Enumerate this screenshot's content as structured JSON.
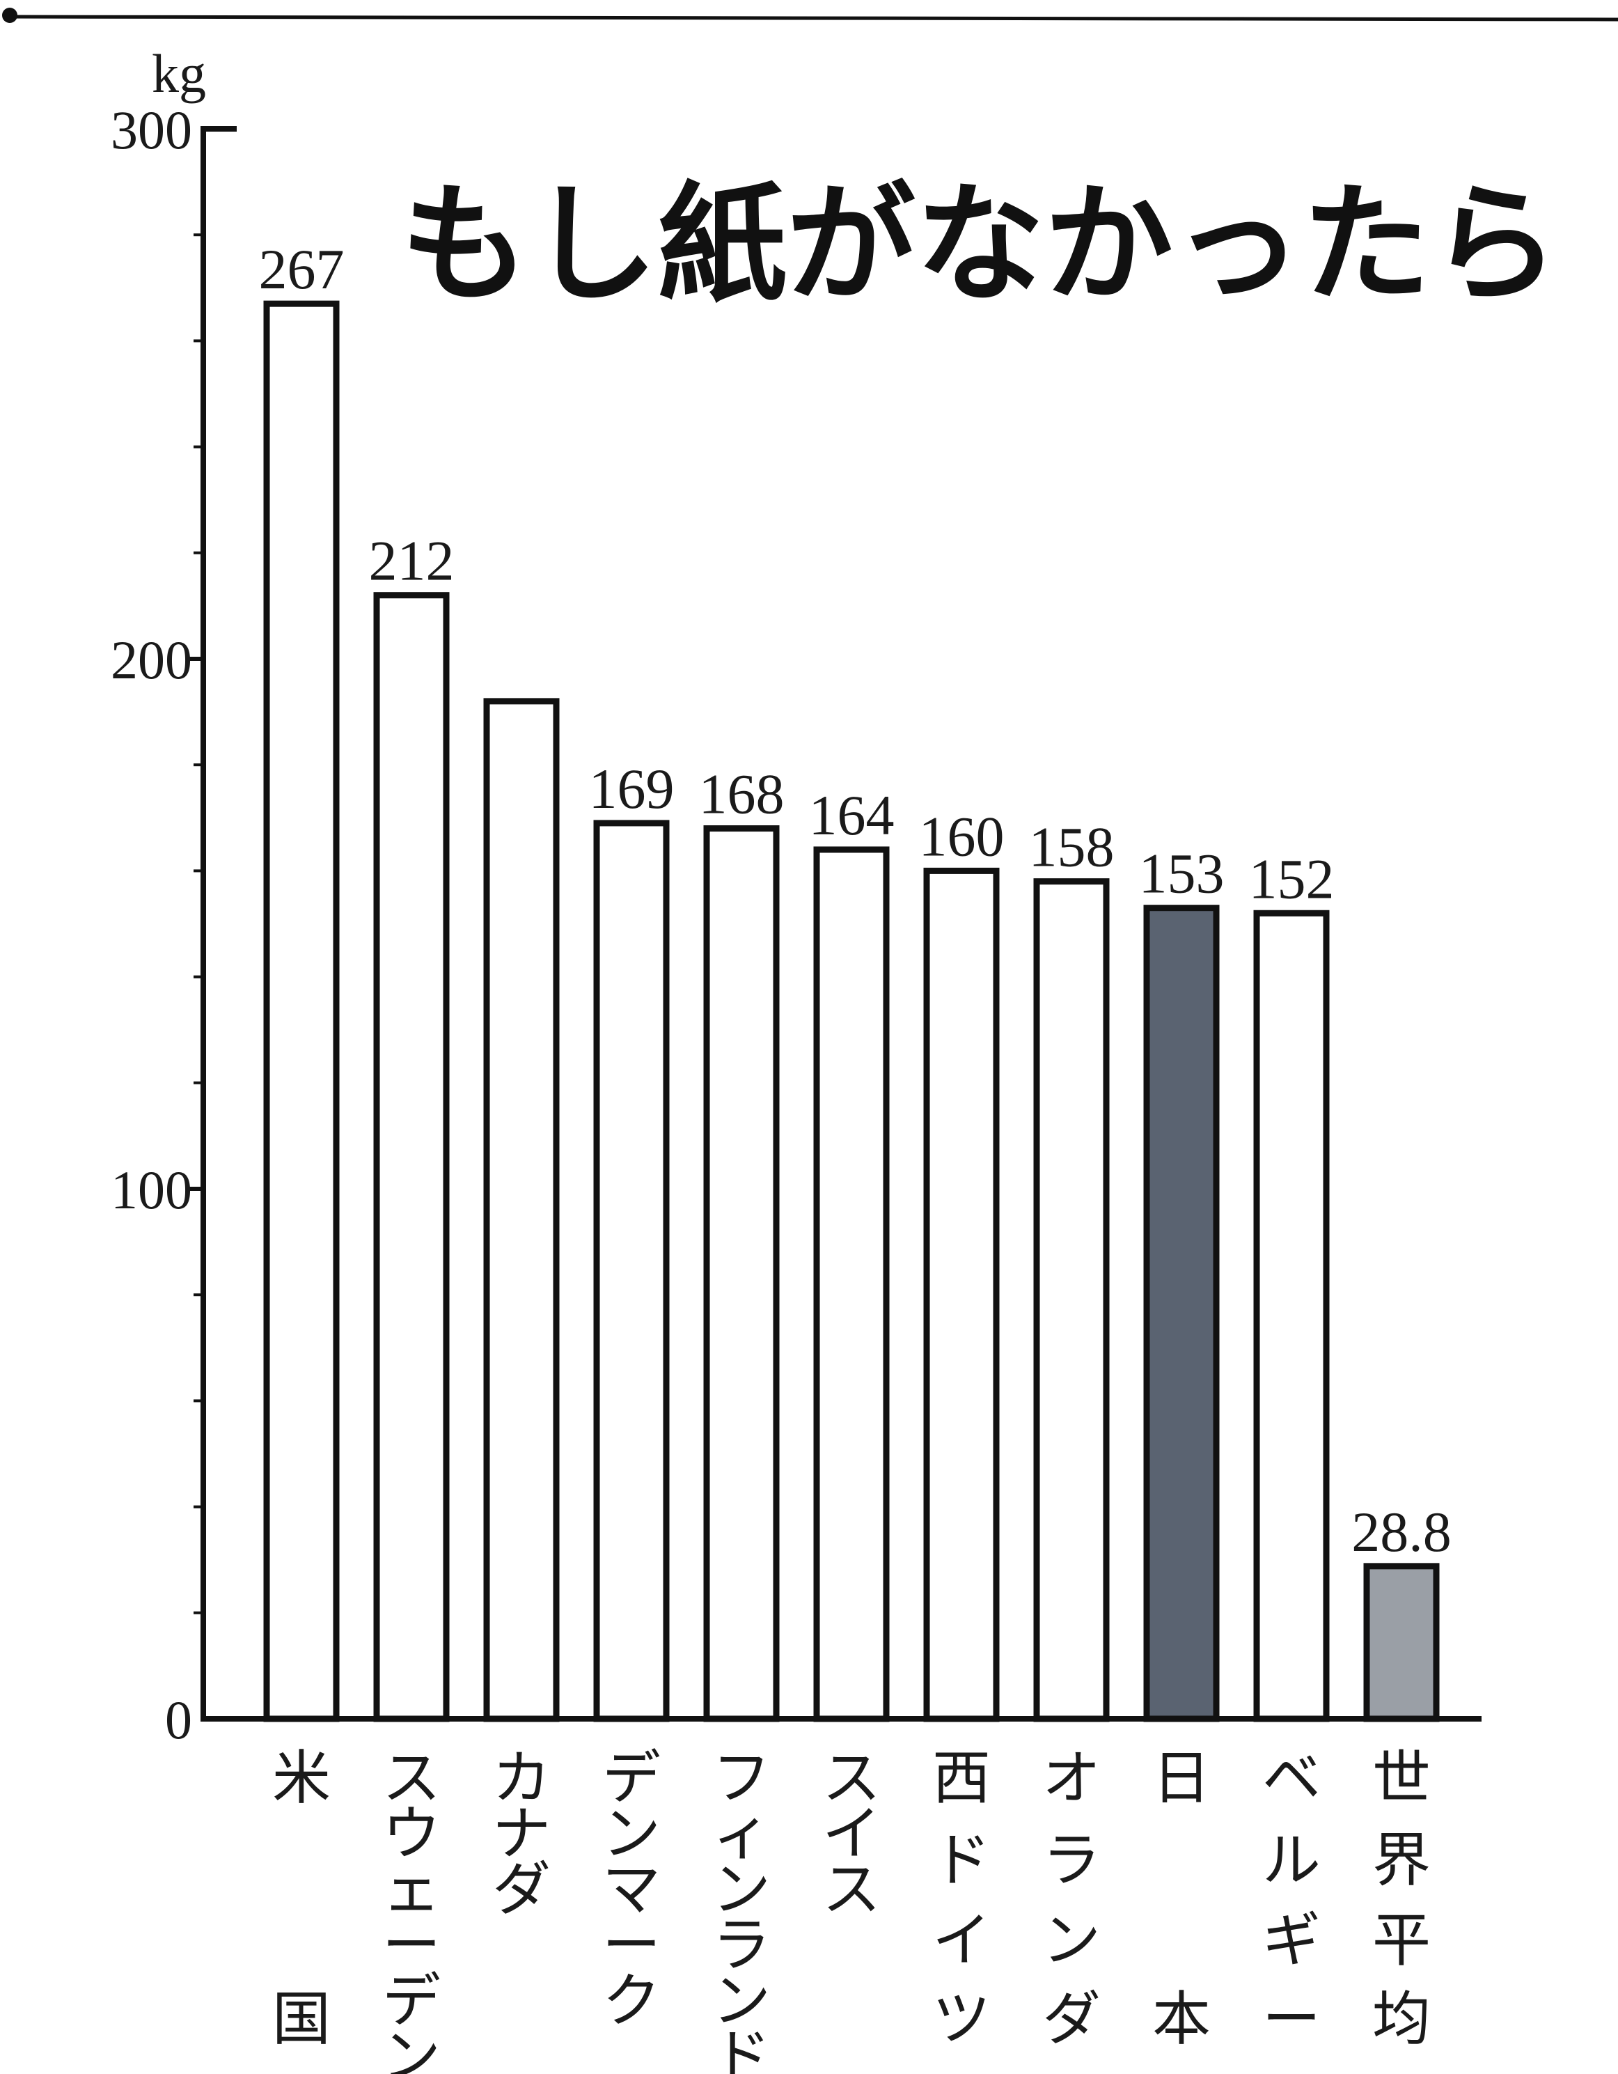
{
  "chart_data": {
    "type": "bar",
    "title": "もし紙がなかったら",
    "ylabel": "kg",
    "xlabel": "",
    "ylim": [
      0,
      300
    ],
    "yticks": [
      0,
      100,
      200,
      300
    ],
    "grid": false,
    "categories": [
      "米国",
      "スウェーデン",
      "カナダ",
      "デンマーク",
      "フィンランド",
      "スイス",
      "西ドイツ",
      "オランダ",
      "日本",
      "ベルギー",
      "世界平均"
    ],
    "category_label_columns": [
      [
        "米",
        "",
        "",
        "国"
      ],
      [
        "ス",
        "ウ",
        "ェ",
        "ー",
        "デ",
        "ン"
      ],
      [
        "カ",
        "ナ",
        "ダ"
      ],
      [
        "デ",
        "ン",
        "マ",
        "ー",
        "ク"
      ],
      [
        "フ",
        "ィ",
        "ン",
        "ラ",
        "ン",
        "ド"
      ],
      [
        "ス",
        "イ",
        "ス"
      ],
      [
        "西",
        "ド",
        "イ",
        "ツ"
      ],
      [
        "オ",
        "ラ",
        "ン",
        "ダ"
      ],
      [
        "日",
        "",
        "",
        "本"
      ],
      [
        "ベ",
        "ル",
        "ギ",
        "ー"
      ],
      [
        "世",
        "界",
        "平",
        "均"
      ]
    ],
    "values": [
      267,
      212,
      192,
      169,
      168,
      164,
      160,
      158,
      153,
      152,
      28.8
    ],
    "value_labels": [
      "267",
      "212",
      "",
      "169",
      "168",
      "164",
      "160",
      "158",
      "153",
      "152",
      "28.8"
    ],
    "bar_fills": [
      "#ffffff",
      "#ffffff",
      "#ffffff",
      "#ffffff",
      "#ffffff",
      "#ffffff",
      "#ffffff",
      "#ffffff",
      "#5a6371",
      "#ffffff",
      "#9a9fa6"
    ],
    "colors": {
      "ink": "#111111",
      "japan": "#5a6371",
      "world_average": "#9a9fa6"
    }
  }
}
